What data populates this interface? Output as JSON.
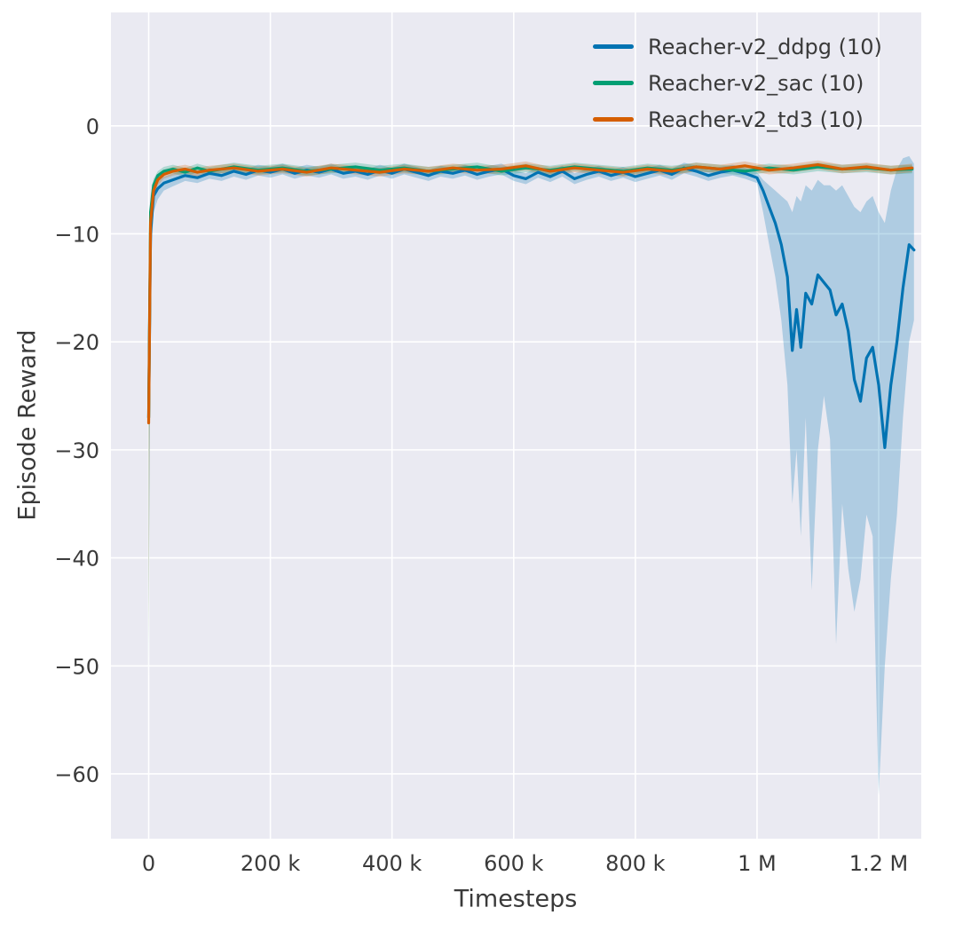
{
  "chart_data": {
    "type": "line",
    "title": "",
    "xlabel": "Timesteps",
    "ylabel": "Episode Reward",
    "x_unit": "thousands of timesteps (k)",
    "xlim": [
      -62,
      1270
    ],
    "ylim": [
      -66,
      10.5
    ],
    "plot_bg": "#eaeaf2",
    "grid_color": "#ffffff",
    "text_color": "#3a3a3a",
    "grid": true,
    "legend_position": "upper right",
    "xticks": {
      "values": [
        0,
        200,
        400,
        600,
        800,
        1000,
        1200
      ],
      "labels": [
        "0",
        "200 k",
        "400 k",
        "600 k",
        "800 k",
        "1 M",
        "1.2 M"
      ]
    },
    "yticks": {
      "values": [
        0,
        -10,
        -20,
        -30,
        -40,
        -50,
        -60
      ],
      "labels": [
        "0",
        "−10",
        "−20",
        "−30",
        "−40",
        "−50",
        "−60"
      ]
    },
    "series": [
      {
        "label": "Reacher-v2_ddpg (10)",
        "color": "#0173b2",
        "band_opacity": 0.25,
        "x": [
          0,
          3,
          8,
          15,
          25,
          40,
          60,
          80,
          100,
          120,
          140,
          160,
          180,
          200,
          220,
          240,
          260,
          280,
          300,
          320,
          340,
          360,
          380,
          400,
          420,
          440,
          460,
          480,
          500,
          520,
          540,
          560,
          580,
          600,
          620,
          640,
          660,
          680,
          700,
          720,
          740,
          760,
          780,
          800,
          820,
          840,
          860,
          880,
          900,
          920,
          940,
          960,
          980,
          1000,
          1010,
          1020,
          1030,
          1040,
          1050,
          1058,
          1065,
          1072,
          1080,
          1090,
          1100,
          1110,
          1120,
          1130,
          1140,
          1150,
          1160,
          1170,
          1180,
          1190,
          1200,
          1210,
          1220,
          1230,
          1240,
          1250,
          1258
        ],
        "y": [
          -27,
          -10,
          -6.5,
          -5.8,
          -5.3,
          -5,
          -4.6,
          -4.8,
          -4.4,
          -4.6,
          -4.2,
          -4.5,
          -4.1,
          -4.3,
          -4,
          -4.4,
          -4.1,
          -4.3,
          -4,
          -4.4,
          -4.2,
          -4.5,
          -4.1,
          -4.4,
          -4,
          -4.3,
          -4.6,
          -4.2,
          -4.4,
          -4.1,
          -4.5,
          -4.2,
          -4,
          -4.6,
          -4.9,
          -4.3,
          -4.7,
          -4.2,
          -4.9,
          -4.5,
          -4.2,
          -4.6,
          -4.3,
          -4.7,
          -4.4,
          -4.1,
          -4.5,
          -3.9,
          -4.2,
          -4.6,
          -4.3,
          -4.1,
          -4.4,
          -4.8,
          -6,
          -7.5,
          -9,
          -11,
          -14,
          -20.8,
          -17,
          -20.5,
          -15.5,
          -16.5,
          -13.8,
          -14.5,
          -15.2,
          -17.5,
          -16.5,
          -19,
          -23.5,
          -25.5,
          -21.5,
          -20.5,
          -24,
          -29.8,
          -24,
          -20,
          -15,
          -11,
          -11.5
        ],
        "band_upper": [
          -20,
          -7,
          -5.5,
          -5,
          -4.7,
          -4.4,
          -4.1,
          -4.3,
          -3.9,
          -4.1,
          -3.7,
          -4,
          -3.6,
          -3.8,
          -3.5,
          -3.9,
          -3.6,
          -3.8,
          -3.5,
          -3.9,
          -3.7,
          -4,
          -3.6,
          -3.9,
          -3.5,
          -3.8,
          -4.1,
          -3.7,
          -3.9,
          -3.6,
          -4,
          -3.7,
          -3.5,
          -4.1,
          -4.4,
          -3.8,
          -4.2,
          -3.7,
          -4.4,
          -4,
          -3.7,
          -4.1,
          -3.8,
          -4.2,
          -3.9,
          -3.6,
          -4,
          -3.4,
          -3.7,
          -4.1,
          -3.8,
          -3.6,
          -3.9,
          -4.3,
          -5,
          -5.5,
          -6,
          -6.5,
          -7,
          -8,
          -6.5,
          -7,
          -5.5,
          -6,
          -5,
          -5.5,
          -5.5,
          -6,
          -5.5,
          -6.5,
          -7.5,
          -8,
          -7,
          -6.5,
          -8,
          -9,
          -6,
          -4,
          -3,
          -2.8,
          -3.5
        ],
        "band_lower": [
          -45,
          -14,
          -8,
          -6.8,
          -6,
          -5.6,
          -5.1,
          -5.3,
          -4.9,
          -5.1,
          -4.7,
          -5,
          -4.6,
          -4.8,
          -4.5,
          -4.9,
          -4.6,
          -4.8,
          -4.5,
          -4.9,
          -4.7,
          -5,
          -4.6,
          -4.9,
          -4.5,
          -4.8,
          -5.1,
          -4.7,
          -4.9,
          -4.6,
          -5,
          -4.7,
          -4.5,
          -5.1,
          -5.4,
          -4.8,
          -5.2,
          -4.7,
          -5.4,
          -5,
          -4.7,
          -5.1,
          -4.8,
          -5.2,
          -4.9,
          -4.6,
          -5,
          -4.4,
          -4.7,
          -5.1,
          -4.8,
          -4.6,
          -4.9,
          -5.3,
          -8,
          -11,
          -14,
          -18,
          -24,
          -35,
          -30,
          -38,
          -27,
          -43,
          -30,
          -25,
          -29,
          -48,
          -35,
          -41,
          -45,
          -42,
          -36,
          -38,
          -62,
          -50,
          -42,
          -36,
          -27,
          -20,
          -18
        ]
      },
      {
        "label": "Reacher-v2_sac (10)",
        "color": "#029e73",
        "band_opacity": 0.25,
        "x": [
          0,
          3,
          8,
          15,
          25,
          40,
          60,
          80,
          100,
          140,
          180,
          220,
          260,
          300,
          340,
          380,
          420,
          460,
          500,
          540,
          580,
          620,
          660,
          700,
          740,
          780,
          820,
          860,
          900,
          940,
          980,
          1020,
          1060,
          1100,
          1140,
          1180,
          1220,
          1255
        ],
        "y": [
          -27,
          -8,
          -5.5,
          -4.6,
          -4.2,
          -4,
          -4.3,
          -3.9,
          -4.2,
          -3.8,
          -4.1,
          -3.9,
          -4.2,
          -4,
          -3.8,
          -4.1,
          -3.9,
          -4.2,
          -4,
          -3.8,
          -4.2,
          -3.9,
          -4.1,
          -3.8,
          -4,
          -4.2,
          -3.9,
          -4.1,
          -3.8,
          -4,
          -4.2,
          -3.9,
          -4.1,
          -3.8,
          -4,
          -3.9,
          -4.1,
          -4
        ],
        "band_upper": [
          -20,
          -6.5,
          -4.9,
          -4.2,
          -3.8,
          -3.6,
          -3.9,
          -3.5,
          -3.8,
          -3.4,
          -3.7,
          -3.5,
          -3.8,
          -3.6,
          -3.4,
          -3.7,
          -3.5,
          -3.8,
          -3.6,
          -3.4,
          -3.8,
          -3.5,
          -3.7,
          -3.4,
          -3.6,
          -3.8,
          -3.5,
          -3.7,
          -3.4,
          -3.6,
          -3.8,
          -3.5,
          -3.7,
          -3.4,
          -3.6,
          -3.5,
          -3.7,
          -3.6
        ],
        "band_lower": [
          -51,
          -10,
          -6.2,
          -5.1,
          -4.6,
          -4.4,
          -4.7,
          -4.3,
          -4.6,
          -4.2,
          -4.5,
          -4.3,
          -4.6,
          -4.4,
          -4.2,
          -4.5,
          -4.3,
          -4.6,
          -4.4,
          -4.2,
          -4.6,
          -4.3,
          -4.5,
          -4.2,
          -4.4,
          -4.6,
          -4.3,
          -4.5,
          -4.2,
          -4.4,
          -4.6,
          -4.3,
          -4.5,
          -4.2,
          -4.4,
          -4.3,
          -4.5,
          -4.4
        ]
      },
      {
        "label": "Reacher-v2_td3 (10)",
        "color": "#d55e00",
        "band_opacity": 0.25,
        "x": [
          0,
          3,
          8,
          15,
          25,
          40,
          60,
          80,
          100,
          140,
          180,
          220,
          260,
          300,
          340,
          380,
          420,
          460,
          500,
          540,
          580,
          620,
          660,
          700,
          740,
          780,
          820,
          860,
          900,
          940,
          980,
          1020,
          1060,
          1100,
          1140,
          1180,
          1220,
          1255
        ],
        "y": [
          -27.5,
          -9,
          -6,
          -5,
          -4.5,
          -4.2,
          -4,
          -4.3,
          -4.1,
          -3.9,
          -4.2,
          -4,
          -4.3,
          -3.9,
          -4.1,
          -4.3,
          -4,
          -4.2,
          -3.9,
          -4.1,
          -4,
          -3.7,
          -4.2,
          -3.9,
          -4.1,
          -4.3,
          -4,
          -4.2,
          -3.8,
          -4,
          -3.7,
          -4.1,
          -3.9,
          -3.6,
          -4,
          -3.8,
          -4.1,
          -3.9
        ],
        "band_upper": [
          -21,
          -6.8,
          -5.2,
          -4.5,
          -4.1,
          -3.8,
          -3.6,
          -3.9,
          -3.7,
          -3.5,
          -3.8,
          -3.6,
          -3.9,
          -3.5,
          -3.7,
          -3.9,
          -3.6,
          -3.8,
          -3.5,
          -3.7,
          -3.6,
          -3.3,
          -3.8,
          -3.5,
          -3.7,
          -3.9,
          -3.6,
          -3.8,
          -3.4,
          -3.6,
          -3.3,
          -3.7,
          -3.5,
          -3.2,
          -3.6,
          -3.4,
          -3.7,
          -3.5
        ],
        "band_lower": [
          -48,
          -11,
          -6.8,
          -5.5,
          -4.9,
          -4.6,
          -4.4,
          -4.7,
          -4.5,
          -4.3,
          -4.6,
          -4.4,
          -4.7,
          -4.3,
          -4.5,
          -4.7,
          -4.4,
          -4.6,
          -4.3,
          -4.5,
          -4.4,
          -4.1,
          -4.6,
          -4.3,
          -4.5,
          -4.7,
          -4.4,
          -4.6,
          -4.2,
          -4.4,
          -4.1,
          -4.5,
          -4.3,
          -4,
          -4.4,
          -4.2,
          -4.5,
          -4.3
        ]
      }
    ]
  }
}
